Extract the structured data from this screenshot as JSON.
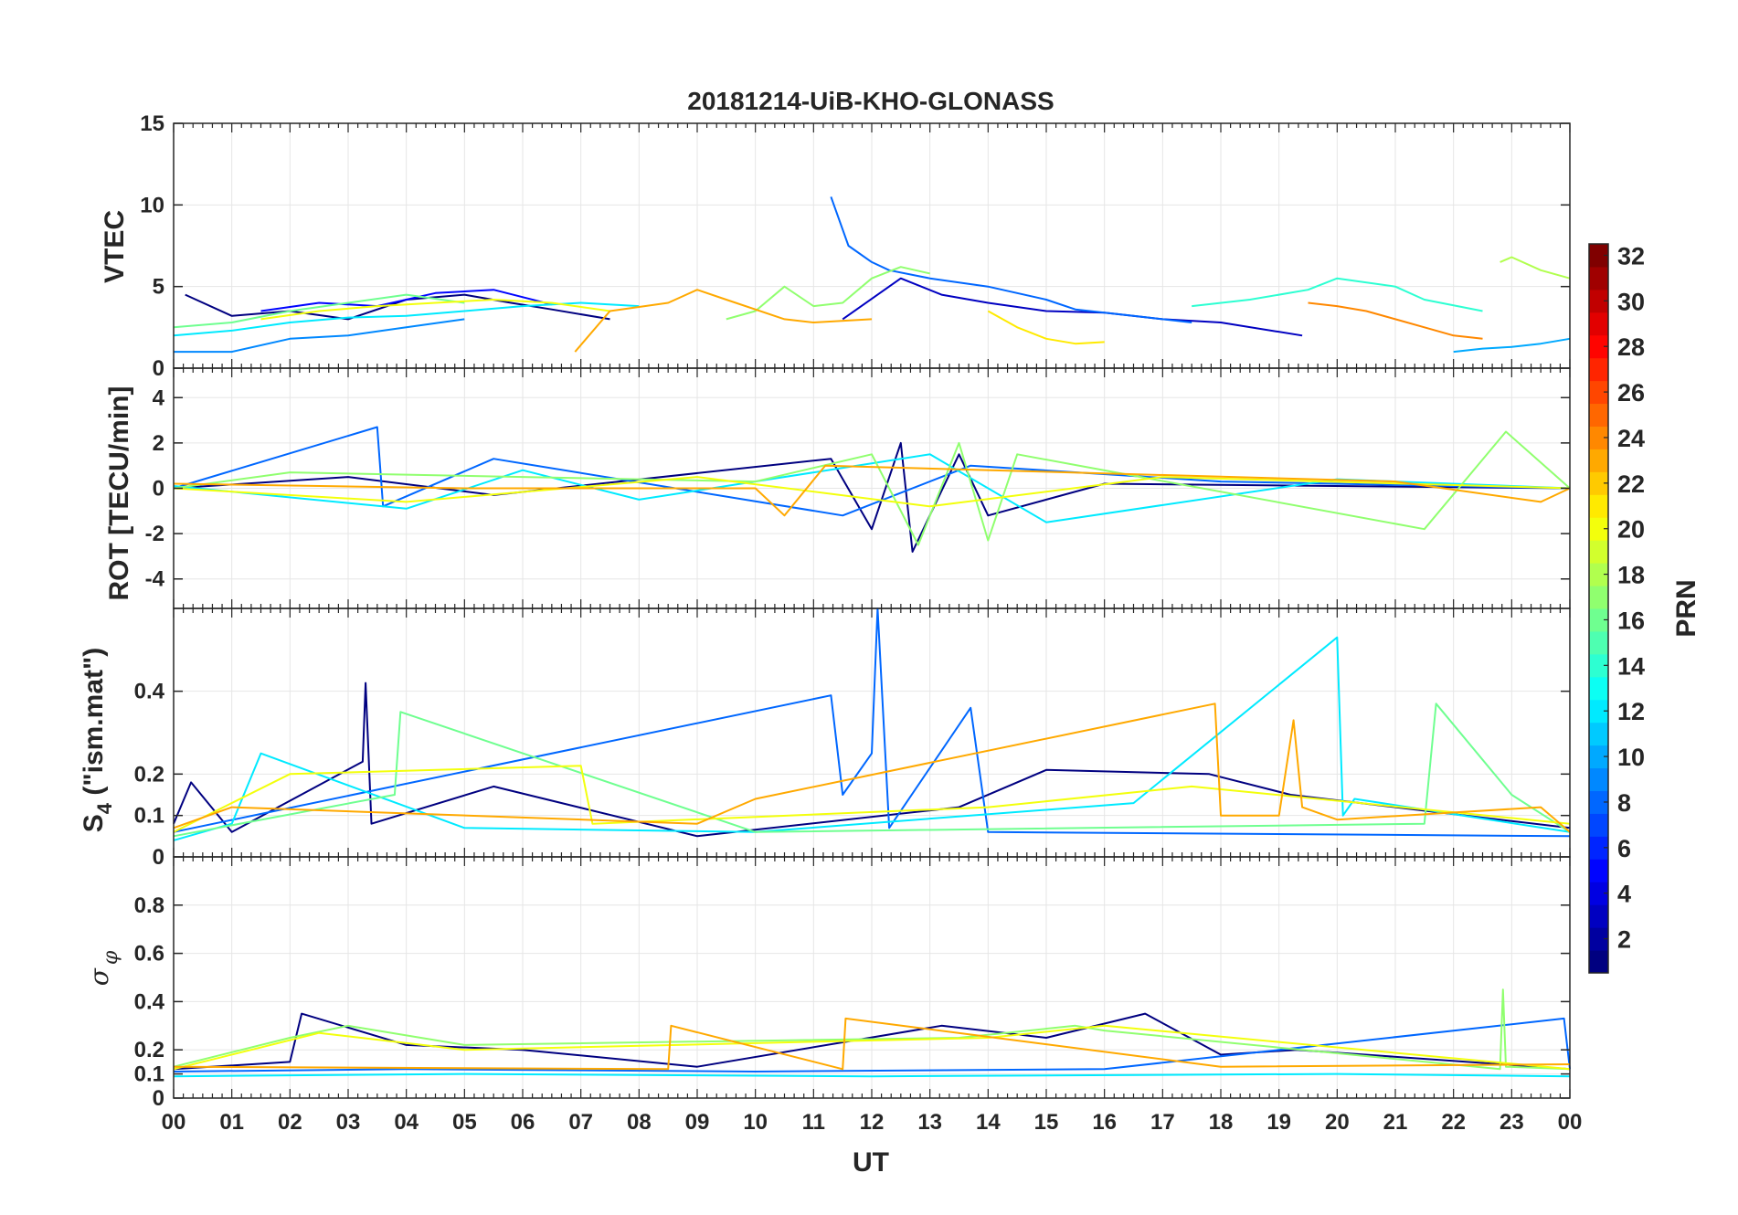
{
  "figure": {
    "title": "20181214-UiB-KHO-GLONASS"
  },
  "colors": {
    "grid": "#e6e6e6",
    "axis": "#262626",
    "background": "#ffffff",
    "colormap": "jet"
  },
  "chart_data": [
    {
      "type": "line",
      "panel": "vtec",
      "ylabel": "VTEC",
      "ylim": [
        0,
        15
      ],
      "yticks": [
        "0",
        "5",
        "10",
        "15"
      ],
      "xlim": [
        0,
        24
      ],
      "grid": true,
      "series": [
        {
          "prn": 1,
          "x": [
            0.2,
            1.0,
            2.0,
            3.0,
            4.0,
            5.0,
            5.8,
            6.5,
            7.5
          ],
          "y": [
            4.5,
            3.2,
            3.5,
            3.0,
            4.2,
            4.5,
            4.0,
            3.6,
            3.0
          ]
        },
        {
          "prn": 3,
          "x": [
            11.5,
            12.5,
            13.2,
            14.0,
            15.0,
            16.0,
            17.0,
            18.0,
            19.4
          ],
          "y": [
            3.0,
            5.5,
            4.5,
            4.0,
            3.5,
            3.4,
            3.0,
            2.8,
            2.0
          ]
        },
        {
          "prn": 5,
          "x": [
            1.5,
            2.5,
            3.5,
            4.5,
            5.5,
            6.5
          ],
          "y": [
            3.5,
            4.0,
            3.8,
            4.6,
            4.8,
            3.9
          ]
        },
        {
          "prn": 8,
          "x": [
            11.3,
            11.6,
            12.0,
            12.3,
            13.0,
            14.0,
            15.0,
            15.5,
            16.5,
            17.5
          ],
          "y": [
            10.5,
            7.5,
            6.5,
            6.0,
            5.5,
            5.0,
            4.2,
            3.6,
            3.2,
            2.8
          ]
        },
        {
          "prn": 9,
          "x": [
            0.0,
            1.0,
            2.0,
            3.0,
            4.0,
            5.0
          ],
          "y": [
            1.0,
            1.0,
            1.8,
            2.0,
            2.5,
            3.0
          ]
        },
        {
          "prn": 10,
          "x": [
            22.0,
            22.5,
            23.0,
            23.5,
            24.0
          ],
          "y": [
            1.0,
            1.2,
            1.3,
            1.5,
            1.8
          ]
        },
        {
          "prn": 12,
          "x": [
            0.0,
            1.0,
            2.0,
            3.0,
            4.0,
            5.0,
            6.0,
            7.0,
            8.0
          ],
          "y": [
            2.0,
            2.3,
            2.8,
            3.1,
            3.2,
            3.5,
            3.8,
            4.0,
            3.8
          ]
        },
        {
          "prn": 14,
          "x": [
            17.5,
            18.5,
            19.5,
            20.0,
            21.0,
            21.5,
            22.5
          ],
          "y": [
            3.8,
            4.2,
            4.8,
            5.5,
            5.0,
            4.2,
            3.5
          ]
        },
        {
          "prn": 16,
          "x": [
            0.0,
            1.0,
            2.0,
            3.0,
            4.0,
            5.0
          ],
          "y": [
            2.5,
            2.8,
            3.5,
            4.0,
            4.5,
            4.0
          ]
        },
        {
          "prn": 17,
          "x": [
            9.5,
            10.0,
            10.5,
            11.0,
            11.5,
            12.0,
            12.5,
            13.0
          ],
          "y": [
            3.0,
            3.5,
            5.0,
            3.8,
            4.0,
            5.5,
            6.2,
            5.8
          ]
        },
        {
          "prn": 18,
          "x": [
            22.8,
            23.0,
            23.5,
            24.0
          ],
          "y": [
            6.5,
            6.8,
            6.0,
            5.5
          ]
        },
        {
          "prn": 20,
          "x": [
            1.5,
            2.5,
            3.5,
            4.5,
            5.5,
            6.5,
            7.5
          ],
          "y": [
            3.0,
            3.5,
            3.8,
            4.0,
            4.2,
            4.0,
            3.5
          ]
        },
        {
          "prn": 21,
          "x": [
            14.0,
            14.5,
            15.0,
            15.5,
            16.0
          ],
          "y": [
            3.5,
            2.5,
            1.8,
            1.5,
            1.6
          ]
        },
        {
          "prn": 23,
          "x": [
            6.9,
            7.5,
            8.5,
            9.0,
            9.5,
            10.5,
            11.0,
            12.0
          ],
          "y": [
            1.0,
            3.5,
            4.0,
            4.8,
            4.2,
            3.0,
            2.8,
            3.0
          ]
        },
        {
          "prn": 24,
          "x": [
            19.5,
            20.0,
            20.5,
            21.0,
            21.5,
            22.0,
            22.5
          ],
          "y": [
            4.0,
            3.8,
            3.5,
            3.0,
            2.5,
            2.0,
            1.8
          ]
        }
      ]
    },
    {
      "type": "line",
      "panel": "rot",
      "ylabel": "ROT [TECU/min]",
      "ylim": [
        -5.3,
        5.3
      ],
      "yticks": [
        "-4",
        "-2",
        "0",
        "2",
        "4"
      ],
      "xlim": [
        0,
        24
      ],
      "grid": true,
      "series": [
        {
          "prn": 1,
          "x": [
            0.0,
            3.0,
            5.5,
            11.3,
            12.0,
            12.5,
            12.7,
            13.5,
            14.0,
            16.0,
            24.0
          ],
          "y": [
            0.0,
            0.5,
            -0.3,
            1.3,
            -1.8,
            2.0,
            -2.8,
            1.5,
            -1.2,
            0.2,
            0.0
          ]
        },
        {
          "prn": 8,
          "x": [
            0.0,
            3.5,
            3.6,
            5.5,
            11.5,
            13.7,
            18.0,
            24.0
          ],
          "y": [
            0.0,
            2.7,
            -0.8,
            1.3,
            -1.2,
            1.0,
            0.3,
            0.0
          ]
        },
        {
          "prn": 12,
          "x": [
            0.0,
            4.0,
            6.0,
            8.0,
            13.0,
            15.0,
            20.0,
            24.0
          ],
          "y": [
            0.1,
            -0.9,
            0.8,
            -0.5,
            1.5,
            -1.5,
            0.4,
            0.0
          ]
        },
        {
          "prn": 17,
          "x": [
            0.0,
            2.0,
            10.0,
            12.0,
            12.8,
            13.5,
            14.0,
            14.5,
            21.5,
            22.9,
            24.0
          ],
          "y": [
            0.0,
            0.7,
            0.3,
            1.5,
            -2.5,
            2.0,
            -2.3,
            1.5,
            -1.8,
            2.5,
            0.0
          ]
        },
        {
          "prn": 20,
          "x": [
            0.0,
            4.0,
            9.0,
            13.0,
            17.0,
            24.0
          ],
          "y": [
            0.0,
            -0.6,
            0.5,
            -0.8,
            0.5,
            0.0
          ]
        },
        {
          "prn": 23,
          "x": [
            0.0,
            5.0,
            10.0,
            10.5,
            11.2,
            21.0,
            23.5,
            24.0
          ],
          "y": [
            0.2,
            0.0,
            0.0,
            -1.2,
            1.0,
            0.3,
            -0.6,
            0.0
          ]
        }
      ]
    },
    {
      "type": "line",
      "panel": "s4",
      "ylabel": "S_4 (\"ism.mat\")",
      "ylabel_main": "S",
      "ylabel_sub": "4",
      "ylabel_rest": " (\"ism.mat\")",
      "ylim": [
        0,
        0.6
      ],
      "yticks": [
        "0",
        "0.1",
        "0.2",
        "0.4"
      ],
      "xlim": [
        0,
        24
      ],
      "grid": true,
      "series": [
        {
          "prn": 1,
          "x": [
            0.0,
            0.3,
            1.0,
            3.25,
            3.3,
            3.4,
            5.5,
            9.0,
            13.5,
            15.0,
            17.8,
            19.2,
            24.0
          ],
          "y": [
            0.08,
            0.18,
            0.06,
            0.23,
            0.42,
            0.08,
            0.17,
            0.05,
            0.12,
            0.21,
            0.2,
            0.15,
            0.07
          ]
        },
        {
          "prn": 8,
          "x": [
            0.0,
            11.3,
            11.5,
            12.0,
            12.1,
            12.3,
            13.7,
            14.0,
            24.0
          ],
          "y": [
            0.06,
            0.39,
            0.15,
            0.25,
            0.6,
            0.07,
            0.36,
            0.06,
            0.05
          ]
        },
        {
          "prn": 12,
          "x": [
            0.0,
            1.0,
            1.5,
            5.0,
            10.0,
            16.5,
            20.0,
            20.1,
            20.3,
            24.0
          ],
          "y": [
            0.04,
            0.08,
            0.25,
            0.07,
            0.06,
            0.13,
            0.53,
            0.1,
            0.14,
            0.06
          ]
        },
        {
          "prn": 16,
          "x": [
            0.0,
            3.8,
            3.9,
            10.0,
            21.5,
            21.7,
            23.0,
            24.0
          ],
          "y": [
            0.05,
            0.15,
            0.35,
            0.06,
            0.08,
            0.37,
            0.15,
            0.06
          ]
        },
        {
          "prn": 20,
          "x": [
            0.0,
            2.0,
            7.0,
            7.2,
            14.0,
            17.5,
            24.0
          ],
          "y": [
            0.06,
            0.2,
            0.22,
            0.08,
            0.12,
            0.17,
            0.08
          ]
        },
        {
          "prn": 23,
          "x": [
            0.0,
            1.0,
            9.0,
            10.0,
            17.9,
            18.0,
            19.0,
            19.25,
            19.4,
            20.0,
            23.5,
            24.0
          ],
          "y": [
            0.07,
            0.12,
            0.08,
            0.14,
            0.37,
            0.1,
            0.1,
            0.33,
            0.12,
            0.09,
            0.12,
            0.06
          ]
        }
      ]
    },
    {
      "type": "line",
      "panel": "sigma_phi",
      "ylabel": "σ_φ",
      "ylabel_main": "σ",
      "ylabel_sub": "φ",
      "ylim": [
        0,
        1.0
      ],
      "yticks": [
        "0",
        "0.1",
        "0.2",
        "0.4",
        "0.6",
        "0.8"
      ],
      "xlim": [
        0,
        24
      ],
      "xlabel": "UT",
      "xticks": [
        "00",
        "01",
        "02",
        "03",
        "04",
        "05",
        "06",
        "07",
        "08",
        "09",
        "10",
        "11",
        "12",
        "13",
        "14",
        "15",
        "16",
        "17",
        "18",
        "19",
        "20",
        "21",
        "22",
        "23",
        "00"
      ],
      "grid": true,
      "series": [
        {
          "prn": 1,
          "x": [
            0.0,
            2.0,
            2.2,
            4.0,
            6.0,
            9.0,
            13.2,
            15.0,
            16.7,
            18.0,
            19.3,
            24.0
          ],
          "y": [
            0.12,
            0.15,
            0.35,
            0.22,
            0.2,
            0.13,
            0.3,
            0.25,
            0.35,
            0.18,
            0.2,
            0.12
          ]
        },
        {
          "prn": 8,
          "x": [
            0.0,
            4.0,
            10.0,
            16.0,
            23.9,
            24.0
          ],
          "y": [
            0.11,
            0.12,
            0.11,
            0.12,
            0.33,
            0.12
          ]
        },
        {
          "prn": 12,
          "x": [
            0.0,
            5.0,
            12.0,
            20.0,
            24.0
          ],
          "y": [
            0.09,
            0.1,
            0.09,
            0.1,
            0.09
          ]
        },
        {
          "prn": 17,
          "x": [
            0.0,
            2.0,
            3.0,
            5.0,
            13.5,
            15.5,
            16.0,
            22.8,
            22.85,
            22.9,
            24.0
          ],
          "y": [
            0.13,
            0.25,
            0.3,
            0.22,
            0.25,
            0.3,
            0.28,
            0.12,
            0.45,
            0.13,
            0.12
          ]
        },
        {
          "prn": 20,
          "x": [
            0.0,
            2.5,
            5.0,
            14.0,
            16.0,
            24.0
          ],
          "y": [
            0.12,
            0.27,
            0.2,
            0.25,
            0.3,
            0.12
          ]
        },
        {
          "prn": 23,
          "x": [
            0.0,
            8.5,
            8.55,
            11.5,
            11.55,
            18.0,
            24.0
          ],
          "y": [
            0.13,
            0.12,
            0.3,
            0.12,
            0.33,
            0.13,
            0.14
          ]
        }
      ]
    }
  ],
  "colorbar": {
    "label": "PRN",
    "ticks": [
      "2",
      "4",
      "6",
      "8",
      "10",
      "12",
      "14",
      "16",
      "18",
      "20",
      "22",
      "24",
      "26",
      "28",
      "30",
      "32"
    ],
    "range": [
      1,
      32
    ]
  }
}
